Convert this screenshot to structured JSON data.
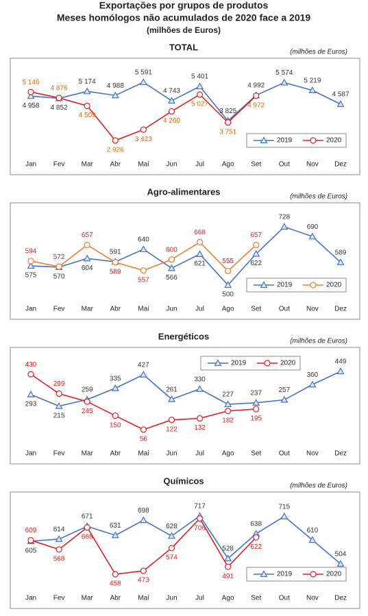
{
  "header": {
    "title": "Exportações por grupos de produtos",
    "subtitle": "Meses homólogos não acumulados de 2020 face a 2019",
    "unit": "(milhões de Euros)"
  },
  "chart_data": [
    {
      "type": "line",
      "title": "TOTAL",
      "note": "(milhões de Euros)",
      "legend": "lower right",
      "categories": [
        "Jan",
        "Fev",
        "Mar",
        "Abr",
        "Mai",
        "Jun",
        "Jul",
        "Ago",
        "Set",
        "Out",
        "Nov",
        "Dez"
      ],
      "series": [
        {
          "name": "2019",
          "color": "#4472c4",
          "label_color": "#333333",
          "marker": "triangle",
          "values": [
            4958,
            4852,
            5174,
            4988,
            5591,
            4743,
            5401,
            3825,
            4992,
            5574,
            5219,
            4587
          ],
          "value_labels": [
            "4 958",
            "4 852",
            "5 174",
            "4 988",
            "5 591",
            "4 743",
            "5 401",
            "3 825",
            "4 992",
            "5 574",
            "5 219",
            "4 587"
          ]
        },
        {
          "name": "2020",
          "color": "#e02020",
          "label_color": "#e46c0a",
          "marker": "circle",
          "values": [
            5146,
            4876,
            4509,
            2926,
            3423,
            4260,
            5027,
            3751,
            4972,
            null,
            null,
            null
          ],
          "value_labels": [
            "5 146",
            "4 876",
            "4 509",
            "2 926",
            "3 423",
            "4 260",
            "5 027",
            "3 751",
            "4 972",
            null,
            null,
            null
          ]
        }
      ]
    },
    {
      "type": "line",
      "title": "Agro-alimentares",
      "note": "(milhões de Euros)",
      "legend": "lower right",
      "categories": [
        "Jan",
        "Fev",
        "Mar",
        "Abr",
        "Mai",
        "Jun",
        "Jul",
        "Ago",
        "Set",
        "Out",
        "Nov",
        "Dez"
      ],
      "series": [
        {
          "name": "2019",
          "color": "#4472c4",
          "label_color": "#333333",
          "marker": "triangle",
          "values": [
            575,
            570,
            604,
            591,
            640,
            566,
            621,
            500,
            622,
            728,
            690,
            589
          ]
        },
        {
          "name": "2020",
          "color": "#ed7d31",
          "label_color": "#e02020",
          "marker": "circle",
          "values": [
            594,
            572,
            657,
            589,
            557,
            600,
            668,
            555,
            657,
            null,
            null,
            null
          ]
        }
      ]
    },
    {
      "type": "line",
      "title": "Energéticos",
      "note": "(milhões de Euros)",
      "legend": "upper center",
      "categories": [
        "Jan",
        "Fev",
        "Mar",
        "Abr",
        "Mai",
        "Jun",
        "Jul",
        "Ago",
        "Set",
        "Out",
        "Nov",
        "Dez"
      ],
      "series": [
        {
          "name": "2019",
          "color": "#4472c4",
          "label_color": "#333333",
          "marker": "triangle",
          "values": [
            293,
            215,
            259,
            335,
            427,
            261,
            330,
            227,
            237,
            257,
            360,
            449
          ]
        },
        {
          "name": "2020",
          "color": "#e02020",
          "label_color": "#e02020",
          "marker": "circle",
          "values": [
            430,
            299,
            245,
            150,
            56,
            122,
            132,
            182,
            195,
            null,
            null,
            null
          ]
        }
      ]
    },
    {
      "type": "line",
      "title": "Químicos",
      "note": "(milhões de Euros)",
      "legend": "lower right",
      "categories": [
        "Jan",
        "Fev",
        "Mar",
        "Abr",
        "Mai",
        "Jun",
        "Jul",
        "Ago",
        "Set",
        "Out",
        "Nov",
        "Dez"
      ],
      "series": [
        {
          "name": "2019",
          "color": "#4472c4",
          "label_color": "#333333",
          "marker": "triangle",
          "values": [
            605,
            614,
            671,
            631,
            698,
            628,
            717,
            528,
            638,
            715,
            610,
            504
          ]
        },
        {
          "name": "2020",
          "color": "#e02020",
          "label_color": "#e02020",
          "marker": "circle",
          "values": [
            609,
            568,
            666,
            458,
            473,
            574,
            706,
            491,
            622,
            null,
            null,
            null
          ]
        }
      ]
    }
  ]
}
